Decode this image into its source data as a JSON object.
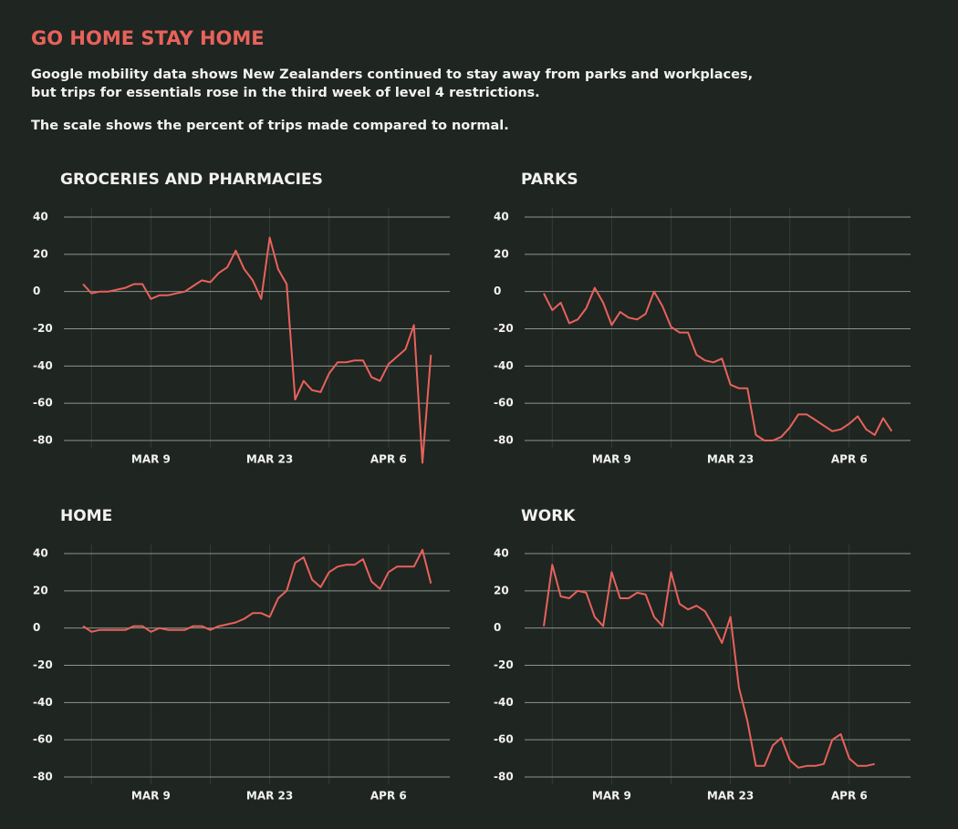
{
  "title": "GO HOME STAY HOME",
  "subtitle": [
    "Google mobility data shows New Zealanders continued to stay away from parks and workplaces,",
    "but trips for essentials rose in the third week of level 4 restrictions."
  ],
  "note": "The scale shows the percent of trips made compared to normal.",
  "chart_data": [
    {
      "type": "line",
      "title": "GROCERIES AND PHARMACIES",
      "color": "#e8625b",
      "grid": true,
      "categories": [
        null,
        null,
        null,
        null,
        null,
        null,
        null,
        null,
        "MAR 9",
        null,
        null,
        null,
        null,
        null,
        null,
        null,
        null,
        null,
        null,
        null,
        null,
        null,
        "MAR 23",
        null,
        null,
        null,
        null,
        null,
        null,
        null,
        null,
        null,
        null,
        null,
        null,
        null,
        "APR 6",
        null,
        null,
        null,
        null,
        null
      ],
      "values": [
        4,
        -1,
        0,
        0,
        1,
        2,
        4,
        4,
        -4,
        -2,
        -2,
        -1,
        0,
        3,
        6,
        5,
        10,
        13,
        22,
        12,
        6,
        -4,
        29,
        12,
        4,
        -58,
        -48,
        -53,
        -54,
        -44,
        -38,
        -38,
        -37,
        -37,
        -46,
        -48,
        -39,
        -35,
        -31,
        -18,
        -92,
        -34
      ],
      "ylim": [
        -80,
        40
      ],
      "yticks": [
        -80,
        -60,
        -40,
        -20,
        0,
        20,
        40
      ]
    },
    {
      "type": "line",
      "title": "PARKS",
      "color": "#e8625b",
      "grid": true,
      "categories": [
        null,
        null,
        null,
        null,
        null,
        null,
        null,
        null,
        "MAR 9",
        null,
        null,
        null,
        null,
        null,
        null,
        null,
        null,
        null,
        null,
        null,
        null,
        null,
        "MAR 23",
        null,
        null,
        null,
        null,
        null,
        null,
        null,
        null,
        null,
        null,
        null,
        null,
        null,
        "APR 6",
        null,
        null,
        null,
        null,
        null
      ],
      "values": [
        -1,
        -10,
        -6,
        -17,
        -15,
        -9,
        2,
        -6,
        -18,
        -11,
        -14,
        -15,
        -12,
        0,
        -8,
        -19,
        -22,
        -22,
        -34,
        -37,
        -38,
        -36,
        -50,
        -52,
        -52,
        -77,
        -80,
        -80,
        -78,
        -73,
        -66,
        -66,
        -69,
        -72,
        -75,
        -74,
        -71,
        -67,
        -74,
        -77,
        -68,
        -75
      ],
      "ylim": [
        -80,
        40
      ],
      "yticks": [
        -80,
        -60,
        -40,
        -20,
        0,
        20,
        40
      ]
    },
    {
      "type": "line",
      "title": "HOME",
      "color": "#e8625b",
      "grid": true,
      "categories": [
        null,
        null,
        null,
        null,
        null,
        null,
        null,
        null,
        "MAR 9",
        null,
        null,
        null,
        null,
        null,
        null,
        null,
        null,
        null,
        null,
        null,
        null,
        null,
        "MAR 23",
        null,
        null,
        null,
        null,
        null,
        null,
        null,
        null,
        null,
        null,
        null,
        null,
        null,
        "APR 6",
        null,
        null,
        null,
        null,
        null
      ],
      "values": [
        1,
        -2,
        -1,
        -1,
        -1,
        -1,
        1,
        1,
        -2,
        0,
        -1,
        -1,
        -1,
        1,
        1,
        -1,
        1,
        2,
        3,
        5,
        8,
        8,
        6,
        16,
        20,
        35,
        38,
        26,
        22,
        30,
        33,
        34,
        34,
        37,
        25,
        21,
        30,
        33,
        33,
        33,
        42,
        24
      ],
      "ylim": [
        -80,
        40
      ],
      "yticks": [
        -80,
        -60,
        -40,
        -20,
        0,
        20,
        40
      ]
    },
    {
      "type": "line",
      "title": "WORK",
      "color": "#e8625b",
      "grid": true,
      "categories": [
        null,
        null,
        null,
        null,
        null,
        null,
        null,
        null,
        "MAR 9",
        null,
        null,
        null,
        null,
        null,
        null,
        null,
        null,
        null,
        null,
        null,
        null,
        null,
        "MAR 23",
        null,
        null,
        null,
        null,
        null,
        null,
        null,
        null,
        null,
        null,
        null,
        null,
        null,
        "APR 6",
        null,
        null,
        null,
        null,
        null
      ],
      "values": [
        1,
        34,
        17,
        16,
        20,
        19,
        6,
        1,
        30,
        16,
        16,
        19,
        18,
        6,
        1,
        30,
        13,
        10,
        12,
        9,
        1,
        -8,
        6,
        -32,
        -50,
        -74,
        -74,
        -63,
        -59,
        -71,
        -75,
        -74,
        -74,
        -73,
        -60,
        -57,
        -70,
        -74,
        -74,
        -73,
        null,
        null
      ],
      "ylim": [
        -80,
        40
      ],
      "yticks": [
        -80,
        -60,
        -40,
        -20,
        0,
        20,
        40
      ]
    }
  ]
}
